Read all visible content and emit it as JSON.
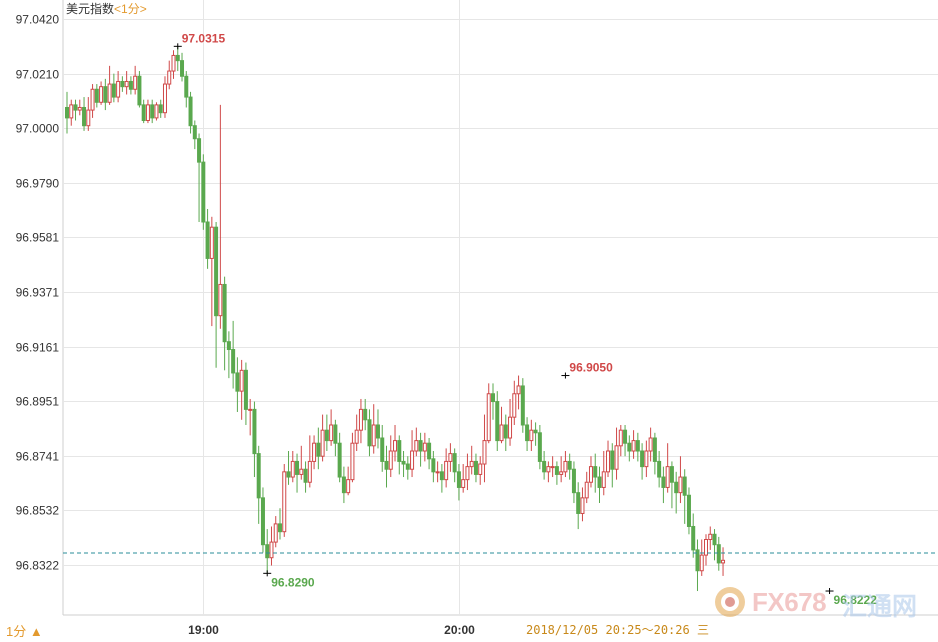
{
  "header": {
    "title": "美元指数",
    "period": "<1分>"
  },
  "footer": {
    "period_toggle": "1分 ▲",
    "range_text": "2018/12/05 20:25～20:26 三"
  },
  "watermark": {
    "text_a": "FX678",
    "text_b": "汇通网"
  },
  "colors": {
    "up": "#d04848",
    "down": "#5aa84e",
    "grid": "#e6e6e6",
    "axis_text": "#333333",
    "marker_high": "#d04848",
    "marker_low": "#5aa84e",
    "ref_line": "#2a8d9a",
    "title_accent": "#e39a2e"
  },
  "chart_data": {
    "type": "candlestick",
    "interval": "1分",
    "ylim": [
      96.8112,
      97.042
    ],
    "yticks": [
      "97.0420",
      "97.0210",
      "97.0000",
      "96.9790",
      "96.9581",
      "96.9371",
      "96.9161",
      "96.8951",
      "96.8741",
      "96.8532",
      "96.8322"
    ],
    "xticks": [
      {
        "label": "19:00",
        "index": 32
      },
      {
        "label": "20:00",
        "index": 92
      }
    ],
    "reference_line": 96.8368,
    "annotations": [
      {
        "label": "97.0315",
        "index": 26,
        "value": 97.0315,
        "kind": "high"
      },
      {
        "label": "96.8290",
        "index": 47,
        "value": 96.829,
        "kind": "low"
      },
      {
        "label": "96.9050",
        "index": 117,
        "value": 96.905,
        "kind": "high"
      },
      {
        "label": "96.8222",
        "index": 179,
        "value": 96.8222,
        "kind": "low"
      }
    ],
    "candles": [
      [
        97.008,
        97.004,
        97.014,
        96.998
      ],
      [
        97.004,
        97.009,
        97.011,
        97.001
      ],
      [
        97.009,
        97.007,
        97.011,
        97.003
      ],
      [
        97.007,
        97.008,
        97.011,
        97.005
      ],
      [
        97.008,
        97.001,
        97.012,
        96.999
      ],
      [
        97.001,
        97.007,
        97.012,
        96.999
      ],
      [
        97.007,
        97.015,
        97.017,
        97.004
      ],
      [
        97.015,
        97.01,
        97.017,
        97.008
      ],
      [
        97.01,
        97.016,
        97.018,
        97.009
      ],
      [
        97.016,
        97.01,
        97.019,
        97.007
      ],
      [
        97.01,
        97.017,
        97.024,
        97.009
      ],
      [
        97.017,
        97.012,
        97.021,
        97.01
      ],
      [
        97.012,
        97.018,
        97.022,
        97.01
      ],
      [
        97.018,
        97.016,
        97.02,
        97.014
      ],
      [
        97.016,
        97.018,
        97.022,
        97.013
      ],
      [
        97.018,
        97.015,
        97.02,
        97.013
      ],
      [
        97.015,
        97.02,
        97.024,
        97.013
      ],
      [
        97.02,
        97.009,
        97.022,
        97.008
      ],
      [
        97.009,
        97.003,
        97.011,
        97.002
      ],
      [
        97.003,
        97.009,
        97.011,
        97.002
      ],
      [
        97.009,
        97.004,
        97.011,
        97.002
      ],
      [
        97.004,
        97.009,
        97.01,
        97.003
      ],
      [
        97.009,
        97.006,
        97.011,
        97.004
      ],
      [
        97.006,
        97.017,
        97.02,
        97.004
      ],
      [
        97.017,
        97.022,
        97.026,
        97.015
      ],
      [
        97.022,
        97.028,
        97.03,
        97.019
      ],
      [
        97.028,
        97.026,
        97.0315,
        97.022
      ],
      [
        97.026,
        97.02,
        97.029,
        97.018
      ],
      [
        97.02,
        97.012,
        97.022,
        97.008
      ],
      [
        97.012,
        97.001,
        97.014,
        96.998
      ],
      [
        97.001,
        96.996,
        97.003,
        96.992
      ],
      [
        96.996,
        96.987,
        96.998,
        96.964
      ],
      [
        96.987,
        96.964,
        96.99,
        96.961
      ],
      [
        96.964,
        96.95,
        96.969,
        96.946
      ],
      [
        96.95,
        96.962,
        96.966,
        96.924
      ],
      [
        96.962,
        96.928,
        96.964,
        96.908
      ],
      [
        96.928,
        96.94,
        97.009,
        96.923
      ],
      [
        96.94,
        96.918,
        96.943,
        96.907
      ],
      [
        96.918,
        96.915,
        96.922,
        96.904
      ],
      [
        96.915,
        96.906,
        96.926,
        96.9
      ],
      [
        96.906,
        96.899,
        96.912,
        96.891
      ],
      [
        96.899,
        96.907,
        96.911,
        96.888
      ],
      [
        96.907,
        96.892,
        96.91,
        96.886
      ],
      [
        96.892,
        96.892,
        96.896,
        96.882
      ],
      [
        96.892,
        96.875,
        96.895,
        96.866
      ],
      [
        96.875,
        96.858,
        96.878,
        96.848
      ],
      [
        96.858,
        96.84,
        96.862,
        96.837
      ],
      [
        96.84,
        96.835,
        96.846,
        96.829
      ],
      [
        96.835,
        96.841,
        96.847,
        96.832
      ],
      [
        96.841,
        96.848,
        96.851,
        96.839
      ],
      [
        96.848,
        96.845,
        96.854,
        96.842
      ],
      [
        96.845,
        96.868,
        96.871,
        96.843
      ],
      [
        96.868,
        96.866,
        96.876,
        96.863
      ],
      [
        96.866,
        96.872,
        96.876,
        96.864
      ],
      [
        96.872,
        96.867,
        96.875,
        96.86
      ],
      [
        96.867,
        96.869,
        96.878,
        96.865
      ],
      [
        96.869,
        96.864,
        96.872,
        96.86
      ],
      [
        96.864,
        96.872,
        96.882,
        96.862
      ],
      [
        96.872,
        96.879,
        96.882,
        96.869
      ],
      [
        96.879,
        96.874,
        96.885,
        96.869
      ],
      [
        96.874,
        96.884,
        96.89,
        96.872
      ],
      [
        96.884,
        96.88,
        96.89,
        96.876
      ],
      [
        96.88,
        96.886,
        96.892,
        96.878
      ],
      [
        96.886,
        96.879,
        96.888,
        96.874
      ],
      [
        96.879,
        96.866,
        96.883,
        96.864
      ],
      [
        96.866,
        96.86,
        96.87,
        96.856
      ],
      [
        96.86,
        96.865,
        96.87,
        96.859
      ],
      [
        96.865,
        96.879,
        96.883,
        96.864
      ],
      [
        96.879,
        96.884,
        96.89,
        96.876
      ],
      [
        96.884,
        96.892,
        96.896,
        96.879
      ],
      [
        96.892,
        96.888,
        96.896,
        96.884
      ],
      [
        96.888,
        96.878,
        96.892,
        96.874
      ],
      [
        96.878,
        96.886,
        96.894,
        96.875
      ],
      [
        96.886,
        96.881,
        96.892,
        96.877
      ],
      [
        96.881,
        96.872,
        96.886,
        96.868
      ],
      [
        96.872,
        96.869,
        96.878,
        96.862
      ],
      [
        96.869,
        96.876,
        96.882,
        96.866
      ],
      [
        96.876,
        96.88,
        96.886,
        96.872
      ],
      [
        96.88,
        96.872,
        96.882,
        96.867
      ],
      [
        96.872,
        96.871,
        96.876,
        96.866
      ],
      [
        96.871,
        96.869,
        96.874,
        96.865
      ],
      [
        96.869,
        96.876,
        96.884,
        96.866
      ],
      [
        96.876,
        96.88,
        96.885,
        96.874
      ],
      [
        96.88,
        96.876,
        96.883,
        96.87
      ],
      [
        96.876,
        96.879,
        96.883,
        96.872
      ],
      [
        96.879,
        96.873,
        96.881,
        96.869
      ],
      [
        96.873,
        96.868,
        96.876,
        96.864
      ],
      [
        96.868,
        96.868,
        96.872,
        96.864
      ],
      [
        96.868,
        96.865,
        96.871,
        96.86
      ],
      [
        96.865,
        96.872,
        96.877,
        96.862
      ],
      [
        96.872,
        96.875,
        96.879,
        96.868
      ],
      [
        96.875,
        96.868,
        96.877,
        96.864
      ],
      [
        96.868,
        96.862,
        96.871,
        96.857
      ],
      [
        96.862,
        96.865,
        96.871,
        96.86
      ],
      [
        96.865,
        96.87,
        96.875,
        96.861
      ],
      [
        96.87,
        96.872,
        96.878,
        96.867
      ],
      [
        96.872,
        96.867,
        96.875,
        96.864
      ],
      [
        96.867,
        96.871,
        96.874,
        96.863
      ],
      [
        96.871,
        96.88,
        96.89,
        96.864
      ],
      [
        96.88,
        96.898,
        96.902,
        96.879
      ],
      [
        96.898,
        96.895,
        96.902,
        96.888
      ],
      [
        96.895,
        96.88,
        96.899,
        96.876
      ],
      [
        96.88,
        96.886,
        96.893,
        96.879
      ],
      [
        96.886,
        96.881,
        96.89,
        96.876
      ],
      [
        96.881,
        96.889,
        96.896,
        96.878
      ],
      [
        96.889,
        96.898,
        96.903,
        96.886
      ],
      [
        96.898,
        96.901,
        96.905,
        96.892
      ],
      [
        96.901,
        96.886,
        96.904,
        96.883
      ],
      [
        96.886,
        96.88,
        96.889,
        96.876
      ],
      [
        96.88,
        96.884,
        96.888,
        96.876
      ],
      [
        96.884,
        96.883,
        96.887,
        96.878
      ],
      [
        96.883,
        96.872,
        96.886,
        96.869
      ],
      [
        96.872,
        96.868,
        96.876,
        96.865
      ],
      [
        96.868,
        96.87,
        96.872,
        96.864
      ],
      [
        96.87,
        96.87,
        96.874,
        96.866
      ],
      [
        96.87,
        96.867,
        96.872,
        96.863
      ],
      [
        96.867,
        96.868,
        96.874,
        96.864
      ],
      [
        96.868,
        96.872,
        96.876,
        96.866
      ],
      [
        96.872,
        96.869,
        96.875,
        96.865
      ],
      [
        96.869,
        96.86,
        96.872,
        96.856
      ],
      [
        96.86,
        96.852,
        96.864,
        96.846
      ],
      [
        96.852,
        96.858,
        96.862,
        96.849
      ],
      [
        96.858,
        96.864,
        96.868,
        96.856
      ],
      [
        96.864,
        96.87,
        96.874,
        96.862
      ],
      [
        96.87,
        96.866,
        96.875,
        96.86
      ],
      [
        96.866,
        96.862,
        96.87,
        96.856
      ],
      [
        96.862,
        96.868,
        96.876,
        96.859
      ],
      [
        96.868,
        96.876,
        96.88,
        96.866
      ],
      [
        96.876,
        96.869,
        96.879,
        96.862
      ],
      [
        96.869,
        96.878,
        96.885,
        96.865
      ],
      [
        96.878,
        96.884,
        96.886,
        96.874
      ],
      [
        96.884,
        96.879,
        96.886,
        96.874
      ],
      [
        96.879,
        96.876,
        96.882,
        96.872
      ],
      [
        96.876,
        96.88,
        96.884,
        96.873
      ],
      [
        96.88,
        96.876,
        96.883,
        96.872
      ],
      [
        96.876,
        96.87,
        96.879,
        96.865
      ],
      [
        96.87,
        96.876,
        96.88,
        96.866
      ],
      [
        96.876,
        96.881,
        96.885,
        96.872
      ],
      [
        96.881,
        96.872,
        96.883,
        96.867
      ],
      [
        96.872,
        96.866,
        96.876,
        96.862
      ],
      [
        96.866,
        96.862,
        96.87,
        96.856
      ],
      [
        96.862,
        96.87,
        96.879,
        96.86
      ],
      [
        96.87,
        96.864,
        96.872,
        96.854
      ],
      [
        96.864,
        96.86,
        96.868,
        96.852
      ],
      [
        96.86,
        96.866,
        96.874,
        96.856
      ],
      [
        96.866,
        96.859,
        96.869,
        96.848
      ],
      [
        96.859,
        96.847,
        96.862,
        96.844
      ],
      [
        96.847,
        96.838,
        96.852,
        96.835
      ],
      [
        96.838,
        96.83,
        96.842,
        96.8222
      ],
      [
        96.83,
        96.836,
        96.842,
        96.828
      ],
      [
        96.836,
        96.842,
        96.844,
        96.832
      ],
      [
        96.842,
        96.844,
        96.847,
        96.838
      ],
      [
        96.844,
        96.84,
        96.846,
        96.834
      ],
      [
        96.84,
        96.833,
        96.843,
        96.83
      ],
      [
        96.833,
        96.834,
        96.839,
        96.828
      ]
    ]
  }
}
